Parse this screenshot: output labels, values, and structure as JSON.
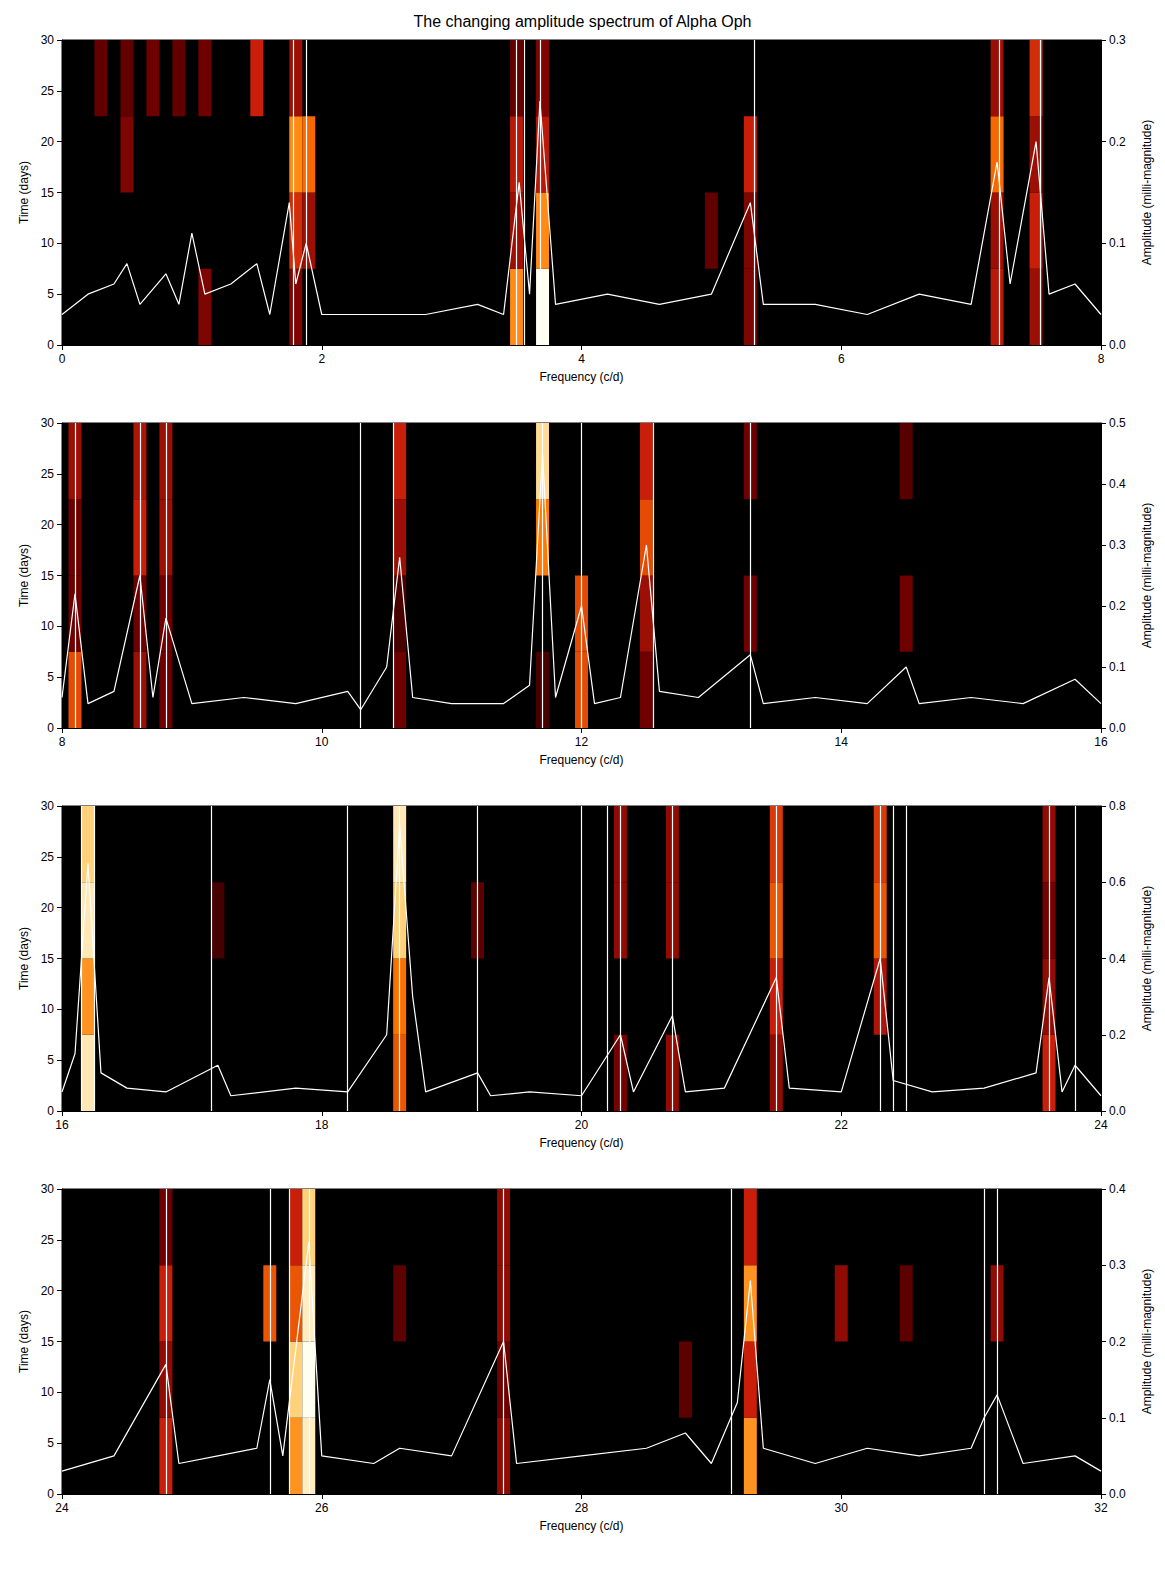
{
  "chart_data": [
    {
      "type": "heatmap",
      "title": "The changing amplitude spectrum of Alpha Oph",
      "xlabel": "Frequency (c/d)",
      "ylabel": "Time (days)",
      "y2label": "Amplitude (milli-magnitude)",
      "xlim": [
        0,
        8
      ],
      "xticks": [
        0,
        2,
        4,
        6,
        8
      ],
      "ylim": [
        0,
        30
      ],
      "yticks": [
        0,
        5,
        10,
        15,
        20,
        25,
        30
      ],
      "y2lim": [
        0,
        0.3
      ],
      "y2ticks": [
        {
          "value": 0,
          "label": "0.0"
        },
        0.1,
        0.2,
        0.3
      ],
      "time_edges": [
        0,
        7.5,
        15,
        22.5,
        30
      ],
      "cell_width": 0.1,
      "cells": [
        [
          0.3,
          22.5,
          0.08
        ],
        [
          0.5,
          15,
          0.1
        ],
        [
          0.5,
          22.5,
          0.08
        ],
        [
          0.7,
          22.5,
          0.09
        ],
        [
          0.9,
          22.5,
          0.08
        ],
        [
          1.1,
          0,
          0.1
        ],
        [
          1.1,
          22.5,
          0.09
        ],
        [
          1.5,
          22.5,
          0.15
        ],
        [
          1.8,
          0,
          0.1
        ],
        [
          1.8,
          7.5,
          0.16
        ],
        [
          1.8,
          15,
          0.22
        ],
        [
          1.8,
          22.5,
          0.12
        ],
        [
          1.9,
          7.5,
          0.12
        ],
        [
          1.9,
          15,
          0.2
        ],
        [
          3.5,
          0,
          0.22
        ],
        [
          3.5,
          7.5,
          0.12
        ],
        [
          3.5,
          15,
          0.14
        ],
        [
          3.5,
          22.5,
          0.08
        ],
        [
          3.7,
          0,
          0.3
        ],
        [
          3.7,
          7.5,
          0.22
        ],
        [
          3.7,
          15,
          0.14
        ],
        [
          3.7,
          22.5,
          0.1
        ],
        [
          5.0,
          7.5,
          0.08
        ],
        [
          5.3,
          0,
          0.1
        ],
        [
          5.3,
          7.5,
          0.1
        ],
        [
          5.3,
          15,
          0.15
        ],
        [
          7.2,
          0,
          0.14
        ],
        [
          7.2,
          7.5,
          0.12
        ],
        [
          7.2,
          15,
          0.2
        ],
        [
          7.2,
          22.5,
          0.12
        ],
        [
          7.5,
          0,
          0.12
        ],
        [
          7.5,
          7.5,
          0.15
        ],
        [
          7.5,
          15,
          0.12
        ],
        [
          7.5,
          22.5,
          0.16
        ]
      ],
      "spectrum": [
        [
          0,
          0.03
        ],
        [
          0.2,
          0.05
        ],
        [
          0.4,
          0.06
        ],
        [
          0.5,
          0.08
        ],
        [
          0.6,
          0.04
        ],
        [
          0.8,
          0.07
        ],
        [
          0.9,
          0.04
        ],
        [
          1.0,
          0.11
        ],
        [
          1.1,
          0.05
        ],
        [
          1.3,
          0.06
        ],
        [
          1.5,
          0.08
        ],
        [
          1.6,
          0.03
        ],
        [
          1.75,
          0.14
        ],
        [
          1.8,
          0.06
        ],
        [
          1.88,
          0.1
        ],
        [
          2.0,
          0.03
        ],
        [
          2.4,
          0.03
        ],
        [
          2.8,
          0.03
        ],
        [
          3.2,
          0.04
        ],
        [
          3.4,
          0.03
        ],
        [
          3.52,
          0.16
        ],
        [
          3.6,
          0.05
        ],
        [
          3.68,
          0.24
        ],
        [
          3.8,
          0.04
        ],
        [
          4.2,
          0.05
        ],
        [
          4.6,
          0.04
        ],
        [
          5.0,
          0.05
        ],
        [
          5.3,
          0.14
        ],
        [
          5.4,
          0.04
        ],
        [
          5.8,
          0.04
        ],
        [
          6.2,
          0.03
        ],
        [
          6.6,
          0.05
        ],
        [
          7.0,
          0.04
        ],
        [
          7.2,
          0.18
        ],
        [
          7.3,
          0.06
        ],
        [
          7.5,
          0.2
        ],
        [
          7.6,
          0.05
        ],
        [
          7.8,
          0.06
        ],
        [
          8,
          0.03
        ]
      ],
      "lines": [
        1.78,
        1.88,
        3.5,
        3.56,
        3.68,
        5.33,
        7.22,
        7.53
      ]
    },
    {
      "type": "heatmap",
      "xlabel": "Frequency (c/d)",
      "ylabel": "Time (days)",
      "y2label": "Amplitude (milli-magnitude)",
      "xlim": [
        8,
        16
      ],
      "xticks": [
        8,
        10,
        12,
        14,
        16
      ],
      "ylim": [
        0,
        30
      ],
      "yticks": [
        0,
        5,
        10,
        15,
        20,
        25,
        30
      ],
      "y2lim": [
        0,
        0.5
      ],
      "y2ticks": [
        {
          "value": 0,
          "label": "0.0"
        },
        0.1,
        0.2,
        0.3,
        0.4,
        0.5
      ],
      "time_edges": [
        0,
        7.5,
        15,
        22.5,
        30
      ],
      "cell_width": 0.1,
      "cells": [
        [
          8.1,
          0,
          0.3
        ],
        [
          8.1,
          7.5,
          0.15
        ],
        [
          8.1,
          15,
          0.15
        ],
        [
          8.1,
          22.5,
          0.2
        ],
        [
          8.6,
          0,
          0.2
        ],
        [
          8.6,
          7.5,
          0.15
        ],
        [
          8.6,
          15,
          0.25
        ],
        [
          8.6,
          22.5,
          0.22
        ],
        [
          8.8,
          0,
          0.15
        ],
        [
          8.8,
          7.5,
          0.15
        ],
        [
          8.8,
          15,
          0.2
        ],
        [
          8.8,
          22.5,
          0.2
        ],
        [
          10.6,
          0,
          0.15
        ],
        [
          10.6,
          7.5,
          0.1
        ],
        [
          10.6,
          15,
          0.2
        ],
        [
          10.6,
          22.5,
          0.25
        ],
        [
          11.7,
          0,
          0.1
        ],
        [
          11.7,
          15,
          0.35
        ],
        [
          11.7,
          22.5,
          0.45
        ],
        [
          12.0,
          0,
          0.3
        ],
        [
          12.0,
          7.5,
          0.3
        ],
        [
          12.5,
          0,
          0.15
        ],
        [
          12.5,
          7.5,
          0.2
        ],
        [
          12.5,
          15,
          0.3
        ],
        [
          12.5,
          22.5,
          0.25
        ],
        [
          13.3,
          7.5,
          0.15
        ],
        [
          13.3,
          22.5,
          0.15
        ],
        [
          14.5,
          7.5,
          0.15
        ],
        [
          14.5,
          22.5,
          0.12
        ]
      ],
      "spectrum": [
        [
          8,
          0.05
        ],
        [
          8.1,
          0.22
        ],
        [
          8.2,
          0.04
        ],
        [
          8.4,
          0.06
        ],
        [
          8.6,
          0.25
        ],
        [
          8.7,
          0.05
        ],
        [
          8.8,
          0.18
        ],
        [
          9.0,
          0.04
        ],
        [
          9.4,
          0.05
        ],
        [
          9.8,
          0.04
        ],
        [
          10.2,
          0.06
        ],
        [
          10.3,
          0.03
        ],
        [
          10.5,
          0.1
        ],
        [
          10.6,
          0.28
        ],
        [
          10.7,
          0.05
        ],
        [
          11.0,
          0.04
        ],
        [
          11.4,
          0.04
        ],
        [
          11.6,
          0.07
        ],
        [
          11.7,
          0.45
        ],
        [
          11.8,
          0.05
        ],
        [
          12.0,
          0.2
        ],
        [
          12.1,
          0.04
        ],
        [
          12.3,
          0.05
        ],
        [
          12.5,
          0.3
        ],
        [
          12.6,
          0.06
        ],
        [
          12.9,
          0.05
        ],
        [
          13.3,
          0.12
        ],
        [
          13.4,
          0.04
        ],
        [
          13.8,
          0.05
        ],
        [
          14.2,
          0.04
        ],
        [
          14.5,
          0.1
        ],
        [
          14.6,
          0.04
        ],
        [
          15.0,
          0.05
        ],
        [
          15.4,
          0.04
        ],
        [
          15.8,
          0.08
        ],
        [
          16,
          0.04
        ]
      ],
      "lines": [
        8.1,
        8.6,
        8.8,
        10.3,
        10.55,
        11.7,
        12.0,
        12.55,
        13.3
      ]
    },
    {
      "type": "heatmap",
      "xlabel": "Frequency (c/d)",
      "ylabel": "Time (days)",
      "y2label": "Amplitude (milli-magnitude)",
      "xlim": [
        16,
        24
      ],
      "xticks": [
        16,
        18,
        20,
        22,
        24
      ],
      "ylim": [
        0,
        30
      ],
      "yticks": [
        0,
        5,
        10,
        15,
        20,
        25,
        30
      ],
      "y2lim": [
        0,
        0.8
      ],
      "y2ticks": [
        {
          "value": 0,
          "label": "0.0"
        },
        0.2,
        0.4,
        0.6,
        0.8
      ],
      "time_edges": [
        0,
        7.5,
        15,
        22.5,
        30
      ],
      "cell_width": 0.1,
      "cells": [
        [
          16.2,
          0,
          0.75
        ],
        [
          16.2,
          7.5,
          0.6
        ],
        [
          16.2,
          15,
          0.75
        ],
        [
          16.2,
          22.5,
          0.7
        ],
        [
          17.2,
          15,
          0.15
        ],
        [
          18.6,
          0,
          0.5
        ],
        [
          18.6,
          7.5,
          0.55
        ],
        [
          18.6,
          15,
          0.7
        ],
        [
          18.6,
          22.5,
          0.75
        ],
        [
          19.2,
          15,
          0.2
        ],
        [
          20.3,
          0,
          0.25
        ],
        [
          20.3,
          15,
          0.3
        ],
        [
          20.3,
          22.5,
          0.3
        ],
        [
          20.7,
          0,
          0.3
        ],
        [
          20.7,
          15,
          0.3
        ],
        [
          20.7,
          22.5,
          0.3
        ],
        [
          21.5,
          0,
          0.3
        ],
        [
          21.5,
          7.5,
          0.4
        ],
        [
          21.5,
          15,
          0.5
        ],
        [
          21.5,
          22.5,
          0.45
        ],
        [
          22.3,
          7.5,
          0.35
        ],
        [
          22.3,
          15,
          0.5
        ],
        [
          22.3,
          22.5,
          0.45
        ],
        [
          23.6,
          0,
          0.4
        ],
        [
          23.6,
          7.5,
          0.3
        ],
        [
          23.6,
          15,
          0.25
        ],
        [
          23.6,
          22.5,
          0.3
        ]
      ],
      "spectrum": [
        [
          16,
          0.05
        ],
        [
          16.1,
          0.15
        ],
        [
          16.2,
          0.65
        ],
        [
          16.3,
          0.1
        ],
        [
          16.5,
          0.06
        ],
        [
          16.8,
          0.05
        ],
        [
          17.2,
          0.12
        ],
        [
          17.3,
          0.04
        ],
        [
          17.8,
          0.06
        ],
        [
          18.2,
          0.05
        ],
        [
          18.5,
          0.2
        ],
        [
          18.6,
          0.75
        ],
        [
          18.7,
          0.3
        ],
        [
          18.8,
          0.05
        ],
        [
          19.2,
          0.1
        ],
        [
          19.3,
          0.04
        ],
        [
          19.6,
          0.05
        ],
        [
          20.0,
          0.04
        ],
        [
          20.3,
          0.2
        ],
        [
          20.4,
          0.05
        ],
        [
          20.7,
          0.25
        ],
        [
          20.8,
          0.05
        ],
        [
          21.1,
          0.06
        ],
        [
          21.5,
          0.35
        ],
        [
          21.6,
          0.06
        ],
        [
          22.0,
          0.05
        ],
        [
          22.3,
          0.4
        ],
        [
          22.4,
          0.08
        ],
        [
          22.7,
          0.05
        ],
        [
          23.1,
          0.06
        ],
        [
          23.5,
          0.1
        ],
        [
          23.6,
          0.35
        ],
        [
          23.7,
          0.05
        ],
        [
          23.8,
          0.12
        ],
        [
          24,
          0.04
        ]
      ],
      "lines": [
        16.15,
        16.25,
        17.15,
        18.2,
        18.6,
        19.2,
        20.0,
        20.2,
        20.3,
        20.7,
        21.5,
        22.3,
        22.4,
        22.5,
        23.6,
        23.8
      ]
    },
    {
      "type": "heatmap",
      "xlabel": "Frequency (c/d)",
      "ylabel": "Time (days)",
      "y2label": "Amplitude (milli-magnitude)",
      "xlim": [
        24,
        32
      ],
      "xticks": [
        24,
        26,
        28,
        30,
        32
      ],
      "ylim": [
        0,
        30
      ],
      "yticks": [
        0,
        5,
        10,
        15,
        20,
        25,
        30
      ],
      "y2lim": [
        0,
        0.4
      ],
      "y2ticks": [
        {
          "value": 0,
          "label": "0.0"
        },
        0.1,
        0.2,
        0.3,
        0.4
      ],
      "time_edges": [
        0,
        7.5,
        15,
        22.5,
        30
      ],
      "cell_width": 0.1,
      "cells": [
        [
          24.8,
          0,
          0.2
        ],
        [
          24.8,
          7.5,
          0.15
        ],
        [
          24.8,
          15,
          0.2
        ],
        [
          24.8,
          22.5,
          0.12
        ],
        [
          25.6,
          15,
          0.25
        ],
        [
          25.8,
          0,
          0.3
        ],
        [
          25.8,
          7.5,
          0.35
        ],
        [
          25.8,
          15,
          0.25
        ],
        [
          25.8,
          22.5,
          0.2
        ],
        [
          25.9,
          0,
          0.38
        ],
        [
          25.9,
          7.5,
          0.4
        ],
        [
          25.9,
          15,
          0.38
        ],
        [
          25.9,
          22.5,
          0.35
        ],
        [
          26.6,
          15,
          0.1
        ],
        [
          27.4,
          0,
          0.15
        ],
        [
          27.4,
          7.5,
          0.12
        ],
        [
          27.4,
          15,
          0.15
        ],
        [
          27.4,
          22.5,
          0.15
        ],
        [
          28.8,
          7.5,
          0.1
        ],
        [
          29.3,
          0,
          0.3
        ],
        [
          29.3,
          7.5,
          0.2
        ],
        [
          29.3,
          15,
          0.3
        ],
        [
          29.3,
          22.5,
          0.2
        ],
        [
          30.0,
          15,
          0.15
        ],
        [
          30.5,
          15,
          0.1
        ],
        [
          31.2,
          15,
          0.15
        ]
      ],
      "spectrum": [
        [
          24,
          0.03
        ],
        [
          24.4,
          0.05
        ],
        [
          24.8,
          0.17
        ],
        [
          24.9,
          0.04
        ],
        [
          25.2,
          0.05
        ],
        [
          25.5,
          0.06
        ],
        [
          25.6,
          0.15
        ],
        [
          25.7,
          0.05
        ],
        [
          25.9,
          0.33
        ],
        [
          26.0,
          0.05
        ],
        [
          26.4,
          0.04
        ],
        [
          26.6,
          0.06
        ],
        [
          27.0,
          0.05
        ],
        [
          27.4,
          0.2
        ],
        [
          27.5,
          0.04
        ],
        [
          28.0,
          0.05
        ],
        [
          28.5,
          0.06
        ],
        [
          28.8,
          0.08
        ],
        [
          29.0,
          0.04
        ],
        [
          29.2,
          0.12
        ],
        [
          29.3,
          0.28
        ],
        [
          29.4,
          0.06
        ],
        [
          29.8,
          0.04
        ],
        [
          30.2,
          0.06
        ],
        [
          30.6,
          0.05
        ],
        [
          31.0,
          0.06
        ],
        [
          31.1,
          0.1
        ],
        [
          31.2,
          0.13
        ],
        [
          31.4,
          0.04
        ],
        [
          31.8,
          0.05
        ],
        [
          32,
          0.03
        ]
      ],
      "lines": [
        24.8,
        25.6,
        25.75,
        25.9,
        27.4,
        29.15,
        31.1,
        31.2
      ]
    }
  ]
}
